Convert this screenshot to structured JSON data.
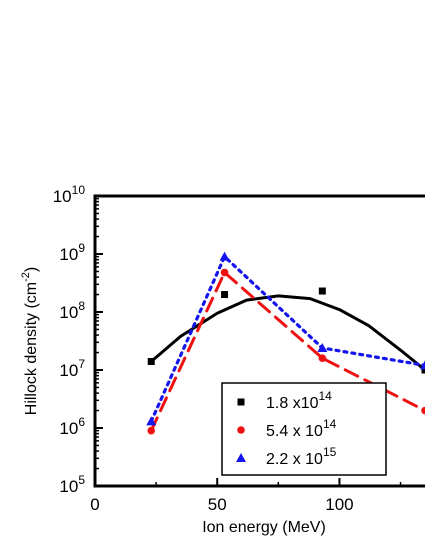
{
  "chart_data": {
    "type": "scatter",
    "xlabel": "Ion energy (MeV)",
    "ylabel_main": "Hillock density (cm",
    "ylabel_sup": "-2",
    "ylabel_close": ")",
    "xlim": [
      0,
      135
    ],
    "ylim": [
      100000,
      10000000000
    ],
    "yscale": "log",
    "xticks": [
      {
        "value": 0,
        "label": "0"
      },
      {
        "value": 50,
        "label": "50"
      },
      {
        "value": 100,
        "label": "100"
      }
    ],
    "yticks": [
      {
        "exp": 5,
        "base": "10",
        "sup": "5"
      },
      {
        "exp": 6,
        "base": "10",
        "sup": "6"
      },
      {
        "exp": 7,
        "base": "10",
        "sup": "7"
      },
      {
        "exp": 8,
        "base": "10",
        "sup": "8"
      },
      {
        "exp": 9,
        "base": "10",
        "sup": "9"
      },
      {
        "exp": 10,
        "base": "10",
        "sup": "10"
      }
    ],
    "legend_position": "bottom-right",
    "series": [
      {
        "name_main": "1.8 x10",
        "name_sup": "14",
        "marker": "square",
        "color": "#000000",
        "line_style": "solid",
        "x": [
          23,
          53,
          93,
          135
        ],
        "y": [
          14000000,
          200000000,
          230000000,
          10000000
        ],
        "fit": {
          "x": [
            23,
            35,
            50,
            62,
            75,
            88,
            100,
            112,
            125,
            135
          ],
          "y": [
            14000000,
            38000000,
            95000000,
            160000000,
            190000000,
            170000000,
            110000000,
            58000000,
            22000000,
            10000000
          ]
        }
      },
      {
        "name_main": "5.4 x 10",
        "name_sup": "14",
        "marker": "circle",
        "color": "#ee1111",
        "line_style": "dashed",
        "x": [
          23,
          53,
          93,
          135
        ],
        "y": [
          900000,
          480000000,
          16000000,
          2000000
        ]
      },
      {
        "name_main": "2.2 x 10",
        "name_sup": "15",
        "marker": "triangle",
        "color": "#1515ee",
        "line_style": "dotted",
        "x": [
          23,
          53,
          93,
          135
        ],
        "y": [
          1300000,
          900000000,
          24000000,
          12000000
        ]
      }
    ]
  }
}
